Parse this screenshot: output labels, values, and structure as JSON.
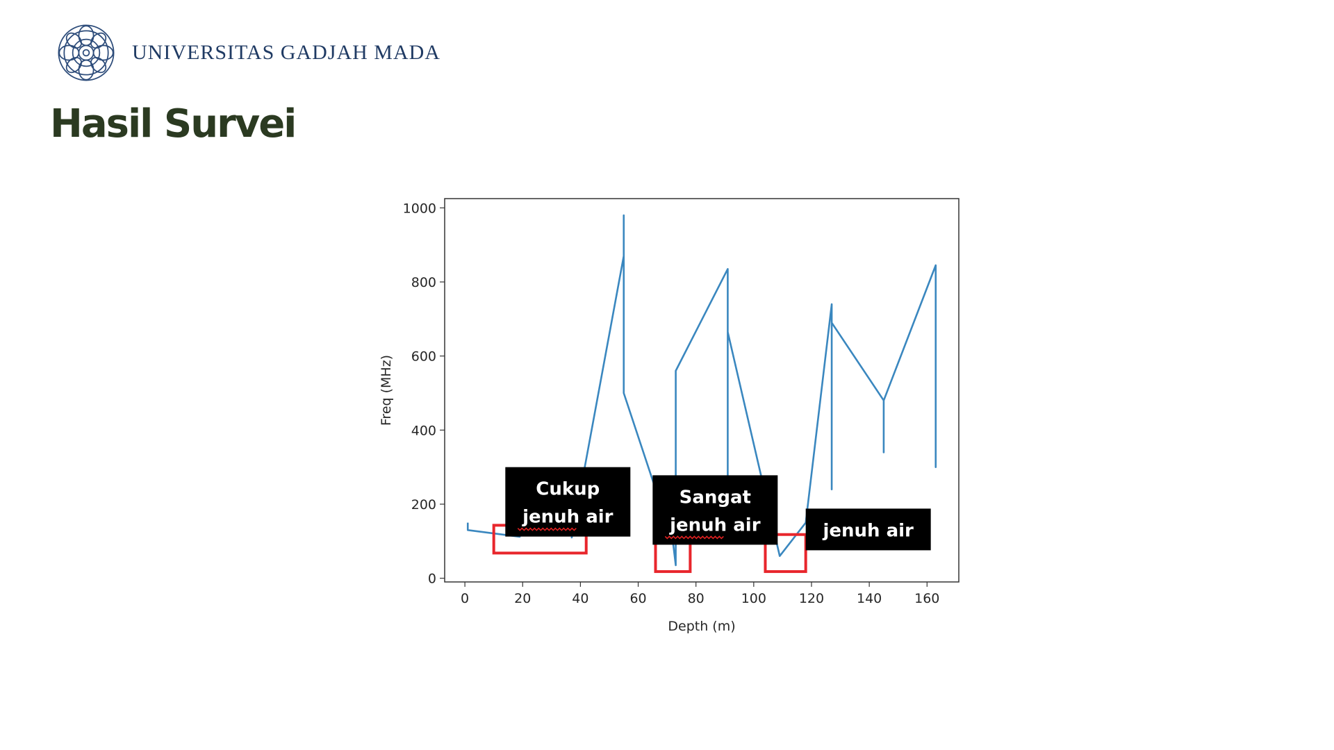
{
  "header": {
    "university_name": "UNIVERSITAS GADJAH MADA",
    "logo_icon": "ugm-seal-icon"
  },
  "page": {
    "title": "Hasil Survei"
  },
  "colors": {
    "title": "#2b3a21",
    "university": "#1f3a63",
    "line": "#3a87bf",
    "highlight_box": "#e8262c",
    "annotation_bg": "#000000",
    "annotation_text": "#ffffff"
  },
  "chart_data": {
    "type": "line",
    "title": "",
    "xlabel": "Depth (m)",
    "ylabel": "Freq (MHz)",
    "xlim": [
      -7,
      171
    ],
    "ylim": [
      -10,
      1025
    ],
    "xticks": [
      0,
      20,
      40,
      60,
      80,
      100,
      120,
      140,
      160
    ],
    "yticks": [
      0,
      200,
      400,
      600,
      800,
      1000
    ],
    "grid": false,
    "series": [
      {
        "x": [
          1,
          1,
          19,
          19,
          37,
          37,
          55,
          55,
          55,
          72,
          73,
          73,
          91,
          91,
          91,
          109,
          118,
          127,
          127,
          127,
          145,
          145,
          145,
          163,
          163,
          163
        ],
        "y": [
          150,
          130,
          112,
          160,
          117,
          110,
          870,
          980,
          500,
          100,
          35,
          560,
          835,
          230,
          665,
          60,
          150,
          740,
          240,
          690,
          480,
          340,
          480,
          845,
          300,
          650
        ]
      }
    ],
    "highlight_boxes": [
      {
        "x0": 10,
        "x1": 42,
        "y0": 68,
        "y1": 143
      },
      {
        "x0": 66,
        "x1": 78,
        "y0": 18,
        "y1": 95
      },
      {
        "x0": 104,
        "x1": 118,
        "y0": 18,
        "y1": 118
      }
    ],
    "annotations": [
      {
        "lines": [
          "Cukup",
          "jenuh air"
        ],
        "x": 14,
        "y": 300,
        "squiggle_word": "jenuh"
      },
      {
        "lines": [
          "Sangat",
          "jenuh air"
        ],
        "x": 65,
        "y": 278,
        "squiggle_word": "jenuh"
      },
      {
        "lines": [
          "jenuh air"
        ],
        "x": 118,
        "y": 188
      }
    ]
  }
}
